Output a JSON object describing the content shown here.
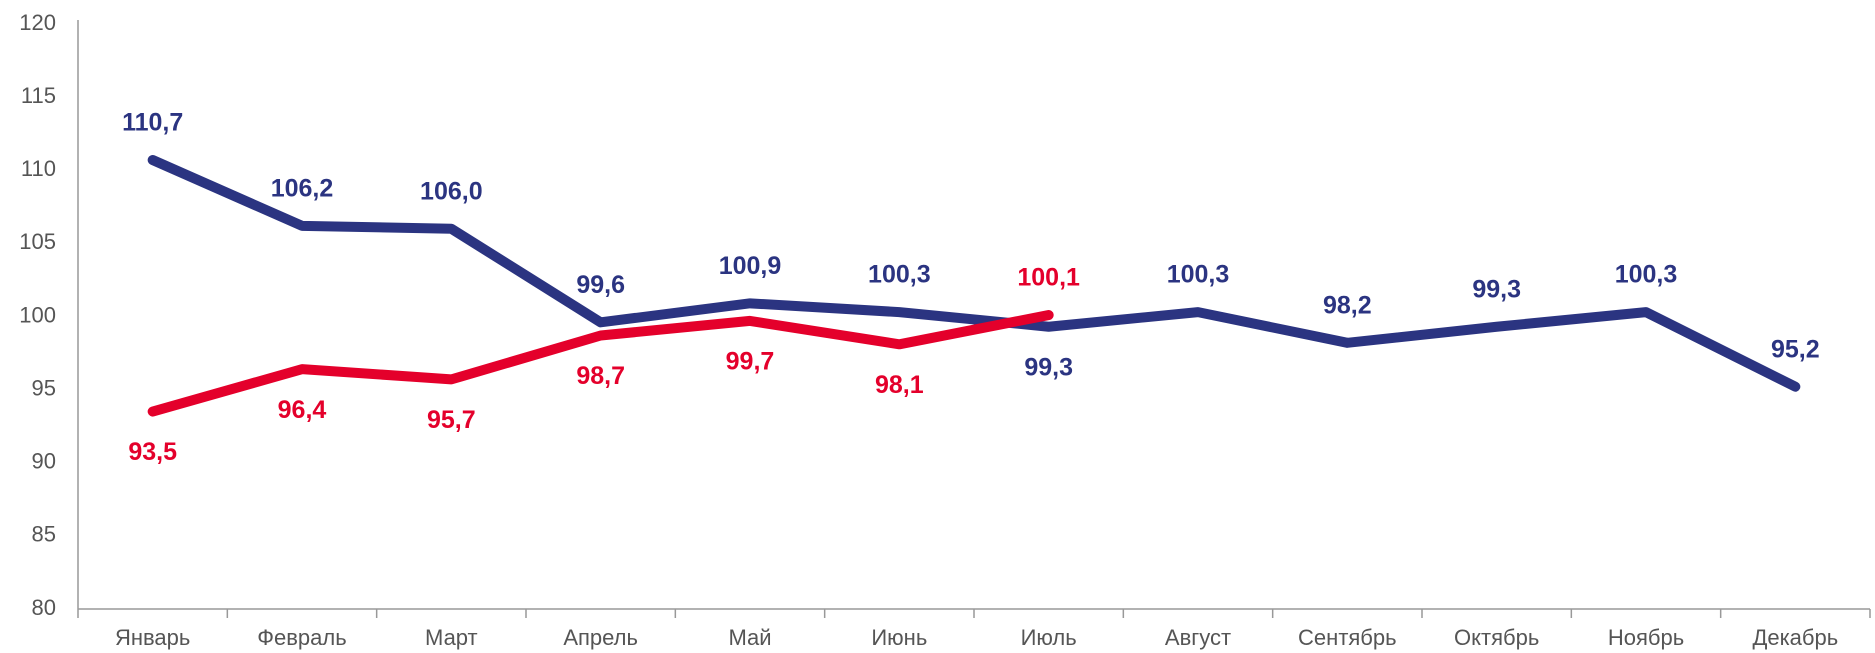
{
  "chart_data": {
    "type": "line",
    "categories": [
      "Январь",
      "Февраль",
      "Март",
      "Апрель",
      "Май",
      "Июнь",
      "Июль",
      "Август",
      "Сентябрь",
      "Октябрь",
      "Ноябрь",
      "Декабрь"
    ],
    "series": [
      {
        "color": "#2b3481",
        "values": [
          110.7,
          106.2,
          106.0,
          99.6,
          100.9,
          100.3,
          99.3,
          100.3,
          98.2,
          99.3,
          100.3,
          95.2
        ],
        "value_labels": [
          "110,7",
          "106,2",
          "106,0",
          "99,6",
          "100,9",
          "100,3",
          "99,3",
          "100,3",
          "98,2",
          "99,3",
          "100,3",
          "95,2"
        ]
      },
      {
        "color": "#e4002b",
        "values": [
          93.5,
          96.4,
          95.7,
          98.7,
          99.7,
          98.1,
          100.1,
          null,
          null,
          null,
          null,
          null
        ],
        "value_labels": [
          "93,5",
          "96,4",
          "95,7",
          "98,7",
          "99,7",
          "98,1",
          "100,1",
          null,
          null,
          null,
          null,
          null
        ]
      }
    ],
    "ylim": [
      80,
      120
    ],
    "yticks": [
      80,
      85,
      90,
      95,
      100,
      105,
      110,
      115,
      120
    ],
    "grid": false
  }
}
